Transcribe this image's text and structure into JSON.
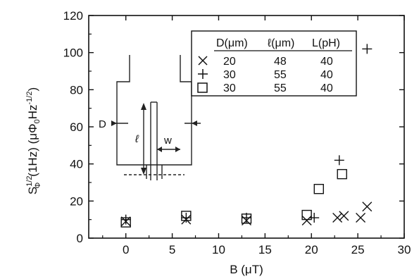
{
  "chart_data": {
    "type": "scatter",
    "xlim": [
      -4,
      30
    ],
    "ylim": [
      0,
      120
    ],
    "xticks": [
      0,
      5,
      10,
      15,
      20,
      25,
      30
    ],
    "yticks": [
      0,
      20,
      40,
      60,
      80,
      100,
      120
    ],
    "xlabel": "B (μT)",
    "ylabel": "S_Φ^1/2 (1Hz) (μΦ0Hz^-1/2)",
    "grid": false,
    "legend": {
      "placement": "top-right",
      "headers": [
        "D(μm)",
        "ℓ(μm)",
        "L(pH)"
      ],
      "rows": [
        {
          "marker": "×",
          "D": "20",
          "l": "48",
          "L": "40"
        },
        {
          "marker": "+",
          "D": "30",
          "l": "55",
          "L": "40"
        },
        {
          "marker": "□",
          "D": "30",
          "l": "55",
          "L": "40"
        }
      ]
    },
    "series": [
      {
        "marker": "x",
        "points": [
          [
            0,
            9
          ],
          [
            6.5,
            10
          ],
          [
            13,
            9.5
          ],
          [
            19.5,
            9.5
          ],
          [
            22.8,
            11
          ],
          [
            23.5,
            12
          ],
          [
            25.3,
            11
          ],
          [
            26,
            17
          ]
        ]
      },
      {
        "marker": "plus",
        "points": [
          [
            0,
            10
          ],
          [
            6.5,
            11
          ],
          [
            13,
            11
          ],
          [
            20.3,
            11
          ],
          [
            23,
            42
          ],
          [
            26,
            102
          ]
        ]
      },
      {
        "marker": "square",
        "points": [
          [
            0,
            8.5
          ],
          [
            6.5,
            12
          ],
          [
            13,
            10.5
          ],
          [
            19.5,
            12.5
          ],
          [
            20.8,
            26.5
          ],
          [
            23.3,
            34.5
          ]
        ]
      }
    ],
    "inset_labels": {
      "D": "D",
      "l": "ℓ",
      "w": "w"
    }
  }
}
